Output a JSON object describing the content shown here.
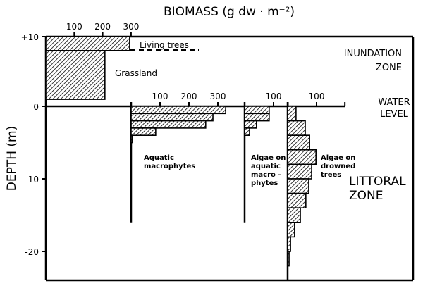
{
  "chart_data": {
    "type": "bar",
    "orientation": "horizontal",
    "title": "BIOMASS (g dw · m⁻²)",
    "ylabel": "DEPTH (m)",
    "ylim": [
      -24,
      10
    ],
    "y_ticks": [
      "+10",
      "0",
      "-10",
      "-20"
    ],
    "y_tick_values": [
      10,
      0,
      -10,
      -20
    ],
    "hatch_color": "#000000",
    "annotations": {
      "inundation_zone": [
        "INUNDATION",
        "ZONE"
      ],
      "water_level": [
        "WATER",
        "LEVEL"
      ],
      "littoral_zone": [
        "LITTORAL",
        "ZONE"
      ]
    },
    "panels": [
      {
        "id": "terrestrial",
        "x_ticks": [
          "100",
          "200",
          "300"
        ],
        "x_tick_values": [
          100,
          200,
          300
        ],
        "series": [
          {
            "name": "Living trees",
            "bars": [
              {
                "depth_top": 10,
                "depth_bottom": 8,
                "value": 295
              }
            ]
          },
          {
            "name": "Grassland",
            "bars": [
              {
                "depth_top": 8,
                "depth_bottom": 1,
                "value": 208
              }
            ]
          }
        ]
      },
      {
        "id": "macrophytes",
        "name": "Aquatic macrophytes",
        "label_lines": [
          "Aquatic",
          "macrophytes"
        ],
        "x_ticks": [
          "100",
          "200",
          "300"
        ],
        "x_tick_values": [
          100,
          200,
          300
        ],
        "bars": [
          {
            "depth_top": 0,
            "depth_bottom": -1,
            "value": 327
          },
          {
            "depth_top": -1,
            "depth_bottom": -2,
            "value": 283
          },
          {
            "depth_top": -2,
            "depth_bottom": -3,
            "value": 258
          },
          {
            "depth_top": -3,
            "depth_bottom": -4,
            "value": 85
          },
          {
            "depth_top": -4,
            "depth_bottom": -5,
            "value": 4
          }
        ]
      },
      {
        "id": "algae-macrophytes",
        "name": "Algae on aquatic macrophytes",
        "label_lines": [
          "Algae on",
          "aquatic",
          "macro -",
          "phytes"
        ],
        "x_ticks": [
          "100"
        ],
        "x_tick_values": [
          100
        ],
        "bars": [
          {
            "depth_top": 0,
            "depth_bottom": -1,
            "value": 85
          },
          {
            "depth_top": -1,
            "depth_bottom": -2,
            "value": 85
          },
          {
            "depth_top": -2,
            "depth_bottom": -3,
            "value": 41
          },
          {
            "depth_top": -3,
            "depth_bottom": -4,
            "value": 17
          }
        ]
      },
      {
        "id": "algae-trees",
        "name": "Algae on drowned trees",
        "label_lines": [
          "Algae on",
          "drowned",
          "trees"
        ],
        "x_ticks": [
          "100"
        ],
        "x_tick_values": [
          100
        ],
        "bars": [
          {
            "depth_top": 0,
            "depth_bottom": -2,
            "value": 29
          },
          {
            "depth_top": -2,
            "depth_bottom": -4,
            "value": 61
          },
          {
            "depth_top": -4,
            "depth_bottom": -6,
            "value": 76
          },
          {
            "depth_top": -6,
            "depth_bottom": -8,
            "value": 98
          },
          {
            "depth_top": -8,
            "depth_bottom": -10,
            "value": 83
          },
          {
            "depth_top": -10,
            "depth_bottom": -12,
            "value": 73
          },
          {
            "depth_top": -12,
            "depth_bottom": -14,
            "value": 63
          },
          {
            "depth_top": -14,
            "depth_bottom": -16,
            "value": 44
          },
          {
            "depth_top": -16,
            "depth_bottom": -18,
            "value": 24
          },
          {
            "depth_top": -18,
            "depth_bottom": -20,
            "value": 10
          },
          {
            "depth_top": -20,
            "depth_bottom": -22,
            "value": 5
          }
        ]
      }
    ]
  }
}
